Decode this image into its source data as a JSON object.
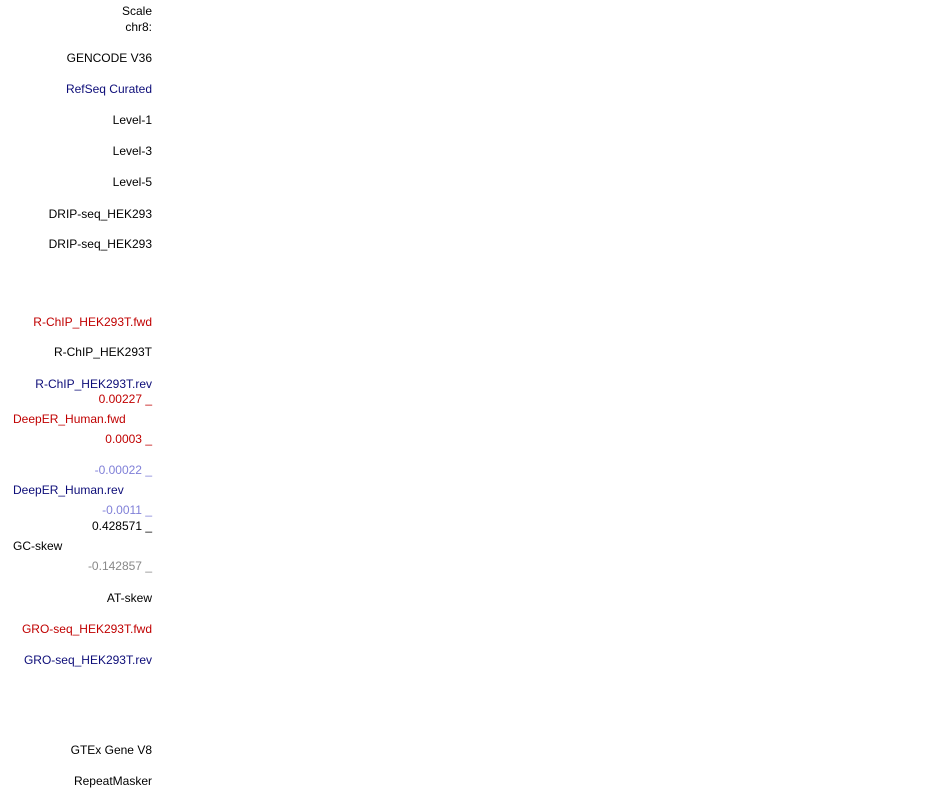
{
  "labels": {
    "scale": "Scale",
    "chrom": "chr8:",
    "gencode": "GENCODE V36",
    "refseq": "RefSeq Curated",
    "level1": "Level-1",
    "level3": "Level-3",
    "level5": "Level-5",
    "drip1": "DRIP-seq_HEK293",
    "drip2": "DRIP-seq_HEK293",
    "rchip_fwd": "R-ChIP_HEK293T.fwd",
    "rchip": "R-ChIP_HEK293T",
    "rchip_rev": "R-ChIP_HEK293T.rev",
    "deeper_fwd": "DeepER_Human.fwd",
    "deeper_rev": "DeepER_Human.rev",
    "gc_skew": "GC-skew",
    "at_skew": "AT-skew",
    "gro_fwd": "GRO-seq_HEK293T.fwd",
    "gro_rev": "GRO-seq_HEK293T.rev",
    "gtex": "GTEx Gene V8",
    "repeatmasker": "RepeatMasker"
  },
  "axis_values": {
    "deeper_fwd_max": "0.00227 _",
    "deeper_fwd_min": "0.0003 _",
    "deeper_rev_max": "-0.00022 _",
    "deeper_rev_min": "-0.0011 _",
    "gc_max": "0.428571 _",
    "gc_min": "-0.142857 _"
  },
  "colors": {
    "black": "#000000",
    "navy": "#0c0c78",
    "red": "#c00000",
    "faint_blue": "#8080d8",
    "grey": "#888888"
  }
}
